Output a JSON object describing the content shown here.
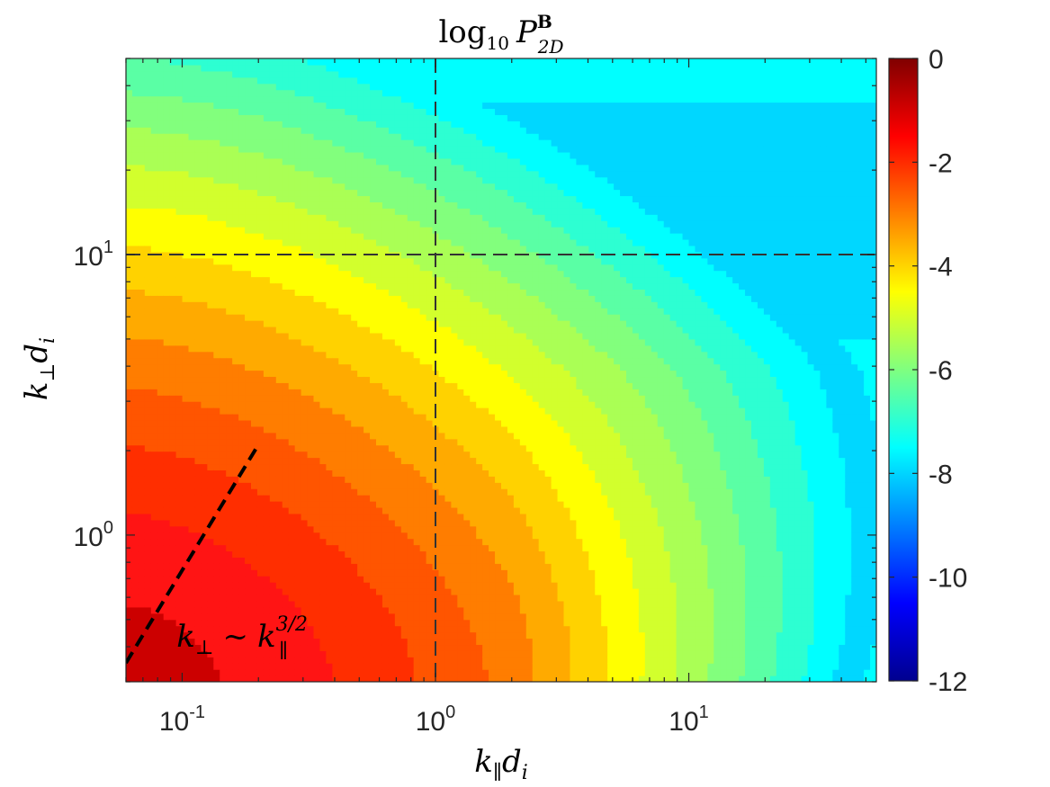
{
  "chart_data": {
    "type": "heatmap",
    "title": {
      "base": "log",
      "base_sub": "10",
      "symbol": "P",
      "sup": "B",
      "sub": "2D"
    },
    "xlabel": {
      "main": "k",
      "sub": "∥",
      "tail": "d",
      "tail_sub": "i"
    },
    "ylabel": {
      "main": "k",
      "sub": "⊥",
      "tail": "d",
      "tail_sub": "i"
    },
    "x_scale": "log",
    "y_scale": "log",
    "xlim": [
      0.06,
      55
    ],
    "ylim": [
      0.3,
      50
    ],
    "x_ticks": [
      {
        "value": 0.1,
        "base": "10",
        "exp": "-1"
      },
      {
        "value": 1,
        "base": "10",
        "exp": "0"
      },
      {
        "value": 10,
        "base": "10",
        "exp": "1"
      }
    ],
    "y_ticks": [
      {
        "value": 1,
        "base": "10",
        "exp": "0"
      },
      {
        "value": 10,
        "base": "10",
        "exp": "1"
      }
    ],
    "reference_lines": {
      "vertical_x": 1,
      "horizontal_y": 10,
      "style": "dashed"
    },
    "power_law_fit": {
      "x_start": 0.06,
      "y_start": 0.35,
      "x_end": 0.2,
      "y_end": 2.1,
      "label": {
        "lhs": "k",
        "lhs_sub": "⊥",
        "rel": "~",
        "rhs": "k",
        "rhs_sub": "∥",
        "rhs_sup": "3/2"
      }
    },
    "colorbar": {
      "colormap": "jet",
      "min": -12,
      "max": 0,
      "tick_labels": [
        "0",
        "-2",
        "-4",
        "-6",
        "-8",
        "-10",
        "-12"
      ],
      "tick_values": [
        0,
        -2,
        -4,
        -6,
        -8,
        -10,
        -12
      ]
    },
    "contour_levels": [
      {
        "level": -0.5,
        "color": "#cc0000"
      },
      {
        "level": -1.0,
        "color": "#ff1414"
      },
      {
        "level": -1.5,
        "color": "#ff2e00"
      },
      {
        "level": -2.0,
        "color": "#ff5500"
      },
      {
        "level": -2.5,
        "color": "#ff7d00"
      },
      {
        "level": -3.0,
        "color": "#ffaa00"
      },
      {
        "level": -3.5,
        "color": "#ffd200"
      },
      {
        "level": -4.0,
        "color": "#ffff00"
      },
      {
        "level": -4.5,
        "color": "#d2ff2d"
      },
      {
        "level": -5.0,
        "color": "#aaff55"
      },
      {
        "level": -5.5,
        "color": "#82ff7d"
      },
      {
        "level": -6.0,
        "color": "#5affa5"
      },
      {
        "level": -6.5,
        "color": "#2dffd2"
      },
      {
        "level": -7.0,
        "color": "#00ffff"
      },
      {
        "level": -7.5,
        "color": "#00d7ff"
      }
    ],
    "background_color": "#00ffff"
  }
}
